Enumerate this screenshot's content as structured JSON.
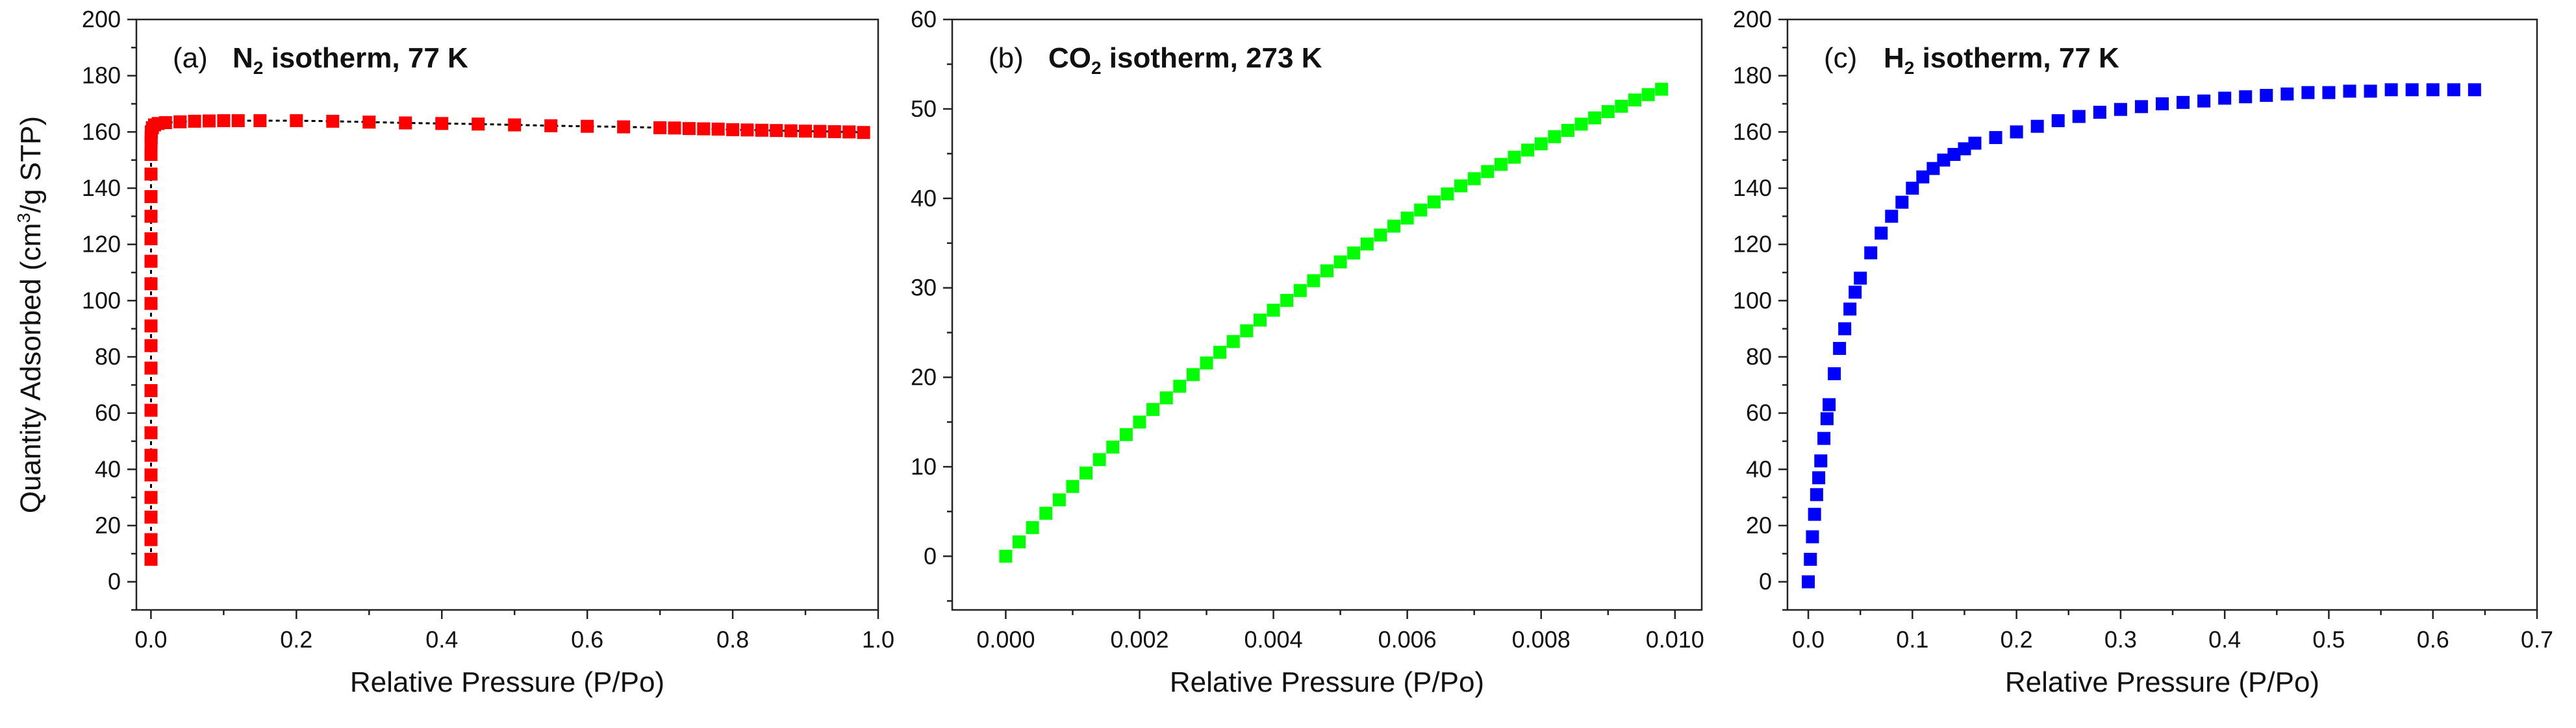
{
  "chart_data": [
    {
      "type": "scatter",
      "panel_label": "(a)",
      "title": {
        "pre": "N",
        "sub": "2",
        "post": " isotherm, 77 K"
      },
      "xlabel": "Relative Pressure (P/Po)",
      "ylabel": {
        "pre": "Quantity Adsorbed (cm",
        "sup": "3",
        "post": "/g STP)"
      },
      "xlim": [
        -0.02,
        1.0
      ],
      "ylim": [
        -10,
        200
      ],
      "xticks": [
        0.0,
        0.2,
        0.4,
        0.6,
        0.8,
        1.0
      ],
      "xtick_labels": [
        "0.0",
        "0.2",
        "0.4",
        "0.6",
        "0.8",
        "1.0"
      ],
      "yticks": [
        0,
        20,
        40,
        60,
        80,
        100,
        120,
        140,
        160,
        180,
        200
      ],
      "ytick_labels": [
        "0",
        "20",
        "40",
        "60",
        "80",
        "100",
        "120",
        "140",
        "160",
        "180",
        "200"
      ],
      "color": "#ff0000",
      "marker": "square",
      "connect_line": true,
      "line_color": "#000000",
      "grid": false,
      "series": [
        {
          "name": "N2 isotherm",
          "x": [
            0.0001,
            0.0001,
            0.0001,
            0.0001,
            0.0001,
            0.0001,
            0.0001,
            0.0001,
            0.0001,
            0.0001,
            0.0001,
            0.0001,
            0.0001,
            0.0001,
            0.0001,
            0.0001,
            0.0001,
            0.0001,
            0.0001,
            0.0001,
            0.0002,
            0.0003,
            0.0005,
            0.002,
            0.005,
            0.01,
            0.02,
            0.04,
            0.06,
            0.08,
            0.1,
            0.12,
            0.15,
            0.2,
            0.25,
            0.3,
            0.35,
            0.4,
            0.45,
            0.5,
            0.55,
            0.6,
            0.65,
            0.7,
            0.72,
            0.74,
            0.76,
            0.78,
            0.8,
            0.82,
            0.84,
            0.86,
            0.88,
            0.9,
            0.92,
            0.94,
            0.96,
            0.98
          ],
          "y": [
            8,
            15,
            23,
            30,
            38,
            45,
            53,
            61,
            68,
            76,
            84,
            91,
            99,
            106,
            114,
            122,
            130,
            137,
            145,
            152,
            156,
            158,
            160,
            161.5,
            162.5,
            163,
            163.3,
            163.6,
            163.8,
            163.9,
            164,
            164,
            164,
            164,
            163.8,
            163.5,
            163.2,
            163,
            162.8,
            162.5,
            162.2,
            162,
            161.8,
            161.5,
            161.4,
            161.2,
            161.1,
            161,
            160.8,
            160.7,
            160.6,
            160.5,
            160.4,
            160.3,
            160.2,
            160.1,
            160,
            159.8
          ]
        }
      ]
    },
    {
      "type": "scatter",
      "panel_label": "(b)",
      "title": {
        "pre": "CO",
        "sub": "2",
        "post": " isotherm, 273 K"
      },
      "xlabel": "Relative Pressure (P/Po)",
      "ylabel": null,
      "xlim": [
        -0.0008,
        0.0104
      ],
      "ylim": [
        -6,
        60
      ],
      "xticks": [
        0.0,
        0.002,
        0.004,
        0.006,
        0.008,
        0.01
      ],
      "xtick_labels": [
        "0.000",
        "0.002",
        "0.004",
        "0.006",
        "0.008",
        "0.010"
      ],
      "yticks": [
        0,
        10,
        20,
        30,
        40,
        50,
        60
      ],
      "ytick_labels": [
        "0",
        "10",
        "20",
        "30",
        "40",
        "50",
        "60"
      ],
      "color": "#00ff00",
      "marker": "square",
      "connect_line": false,
      "grid": false,
      "series": [
        {
          "name": "CO2 isotherm",
          "x": [
            0.0,
            0.0002,
            0.0004,
            0.0006,
            0.0008,
            0.001,
            0.0012,
            0.0014,
            0.0016,
            0.0018,
            0.002,
            0.0022,
            0.0024,
            0.0026,
            0.0028,
            0.003,
            0.0032,
            0.0034,
            0.0036,
            0.0038,
            0.004,
            0.0042,
            0.0044,
            0.0046,
            0.0048,
            0.005,
            0.0052,
            0.0054,
            0.0056,
            0.0058,
            0.006,
            0.0062,
            0.0064,
            0.0066,
            0.0068,
            0.007,
            0.0072,
            0.0074,
            0.0076,
            0.0078,
            0.008,
            0.0082,
            0.0084,
            0.0086,
            0.0088,
            0.009,
            0.0092,
            0.0094,
            0.0096,
            0.0098
          ],
          "y": [
            0.0,
            1.6,
            3.2,
            4.8,
            6.3,
            7.8,
            9.3,
            10.8,
            12.2,
            13.6,
            15.0,
            16.4,
            17.7,
            19.0,
            20.3,
            21.6,
            22.8,
            24.0,
            25.2,
            26.4,
            27.5,
            28.6,
            29.7,
            30.8,
            31.9,
            32.9,
            33.9,
            34.9,
            35.9,
            36.9,
            37.8,
            38.7,
            39.6,
            40.5,
            41.4,
            42.2,
            43.0,
            43.8,
            44.6,
            45.4,
            46.1,
            46.9,
            47.6,
            48.3,
            49.0,
            49.7,
            50.3,
            51.0,
            51.6,
            52.2
          ]
        }
      ]
    },
    {
      "type": "scatter",
      "panel_label": "(c)",
      "title": {
        "pre": "H",
        "sub": "2",
        "post": " isotherm, 77 K"
      },
      "xlabel": "Relative Pressure (P/Po)",
      "ylabel": null,
      "xlim": [
        -0.02,
        0.7
      ],
      "ylim": [
        -10,
        200
      ],
      "xticks": [
        0.0,
        0.1,
        0.2,
        0.3,
        0.4,
        0.5,
        0.6,
        0.7
      ],
      "xtick_labels": [
        "0.0",
        "0.1",
        "0.2",
        "0.3",
        "0.4",
        "0.5",
        "0.6",
        "0.7"
      ],
      "yticks": [
        0,
        20,
        40,
        60,
        80,
        100,
        120,
        140,
        160,
        180,
        200
      ],
      "ytick_labels": [
        "0",
        "20",
        "40",
        "60",
        "80",
        "100",
        "120",
        "140",
        "160",
        "180",
        "200"
      ],
      "color": "#0000ff",
      "marker": "square",
      "connect_line": false,
      "grid": false,
      "series": [
        {
          "name": "H2 isotherm",
          "x": [
            0.0,
            0.002,
            0.004,
            0.006,
            0.008,
            0.01,
            0.012,
            0.015,
            0.018,
            0.02,
            0.025,
            0.03,
            0.035,
            0.04,
            0.045,
            0.05,
            0.06,
            0.07,
            0.08,
            0.09,
            0.1,
            0.11,
            0.12,
            0.13,
            0.14,
            0.15,
            0.16,
            0.18,
            0.2,
            0.22,
            0.24,
            0.26,
            0.28,
            0.3,
            0.32,
            0.34,
            0.36,
            0.38,
            0.4,
            0.42,
            0.44,
            0.46,
            0.48,
            0.5,
            0.52,
            0.54,
            0.56,
            0.58,
            0.6,
            0.62,
            0.64
          ],
          "y": [
            0,
            8,
            16,
            24,
            31,
            37,
            43,
            51,
            58,
            63,
            74,
            83,
            90,
            97,
            103,
            108,
            117,
            124,
            130,
            135,
            140,
            144,
            147,
            150,
            152,
            154,
            156,
            158,
            160,
            162,
            164,
            165.5,
            167,
            168,
            169,
            170,
            170.5,
            171,
            172,
            172.5,
            173,
            173.5,
            174,
            174,
            174.5,
            174.5,
            175,
            175,
            175,
            175,
            175
          ]
        }
      ]
    }
  ]
}
